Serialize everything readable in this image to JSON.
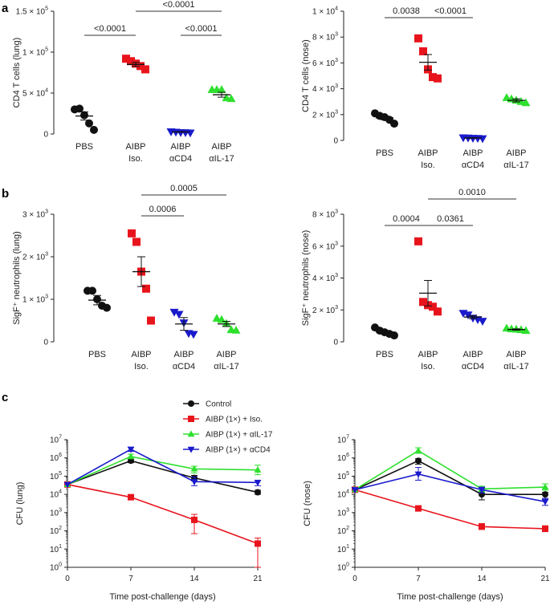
{
  "panel_labels": [
    "a",
    "b",
    "c"
  ],
  "colors": {
    "black": "#111111",
    "red": "#e8141c",
    "blue": "#1a1acc",
    "green": "#2ee02e",
    "grey": "#555555"
  },
  "chart_data": [
    {
      "id": "a_left",
      "type": "scatter",
      "ylabel": "CD4 T cells (lung)",
      "yscale": "linear",
      "ylim": [
        0,
        150000
      ],
      "yticks": [
        {
          "v": 0,
          "m": "0"
        },
        {
          "v": 50000,
          "m": "5 × 10",
          "e": "4"
        },
        {
          "v": 100000,
          "m": "1 × 10",
          "e": "5"
        },
        {
          "v": 150000,
          "m": "1.5 × 10",
          "e": "5"
        }
      ],
      "categories": [
        {
          "l1": "PBS",
          "l2": ""
        },
        {
          "l1": "AIBP",
          "l2": "Iso."
        },
        {
          "l1": "AIBP",
          "l2": "αCD4"
        },
        {
          "l1": "AIBP",
          "l2": "αIL-17"
        }
      ],
      "groups": [
        {
          "color": "black",
          "marker": "circle",
          "points": [
            30000,
            31000,
            23000,
            13000,
            5000
          ],
          "mean": 22000,
          "sem": 5000
        },
        {
          "color": "red",
          "marker": "square",
          "points": [
            92000,
            89000,
            86000,
            83000,
            79000
          ],
          "mean": 85000,
          "sem": 2500
        },
        {
          "color": "blue",
          "marker": "tri_down",
          "points": [
            3000,
            2500,
            2000,
            1800,
            1500
          ],
          "mean": 2500,
          "sem": 300
        },
        {
          "color": "green",
          "marker": "tri_up",
          "points": [
            54000,
            54000,
            54000,
            44000,
            43000
          ],
          "mean": 48000,
          "sem": 3000
        }
      ],
      "brackets": [
        {
          "from": 1,
          "to": 3,
          "text": "<0.0001"
        },
        {
          "from": 0,
          "to": 1,
          "text": "<0.0001"
        },
        {
          "from": 2,
          "to": 3,
          "text": "<0.0001"
        }
      ]
    },
    {
      "id": "a_right",
      "type": "scatter",
      "ylabel": "CD4 T cells (nose)",
      "yscale": "linear",
      "ylim": [
        0,
        10000
      ],
      "yticks": [
        {
          "v": 0,
          "m": "0"
        },
        {
          "v": 2000,
          "m": "2 × 10",
          "e": "3"
        },
        {
          "v": 4000,
          "m": "4 × 10",
          "e": "3"
        },
        {
          "v": 6000,
          "m": "6 × 10",
          "e": "3"
        },
        {
          "v": 8000,
          "m": "8 × 10",
          "e": "3"
        },
        {
          "v": 10000,
          "m": "1 × 10",
          "e": "4"
        }
      ],
      "categories": [
        {
          "l1": "PBS",
          "l2": ""
        },
        {
          "l1": "AIBP",
          "l2": "Iso."
        },
        {
          "l1": "AIBP",
          "l2": "αCD4"
        },
        {
          "l1": "AIBP",
          "l2": "αIL-17"
        }
      ],
      "groups": [
        {
          "color": "black",
          "marker": "circle",
          "points": [
            2100,
            1900,
            1800,
            1600,
            1300
          ],
          "mean": 1750,
          "sem": 150
        },
        {
          "color": "red",
          "marker": "square",
          "points": [
            7900,
            6900,
            5500,
            4900,
            4800
          ],
          "mean": 6050,
          "sem": 600
        },
        {
          "color": "blue",
          "marker": "tri_down",
          "points": [
            220,
            200,
            180,
            170,
            150
          ],
          "mean": 190,
          "sem": 20
        },
        {
          "color": "green",
          "marker": "tri_up",
          "points": [
            3300,
            3200,
            3100,
            3000,
            2900
          ],
          "mean": 3100,
          "sem": 120
        }
      ],
      "brackets": [
        {
          "from": 0,
          "to": 1,
          "text": "0.0038"
        },
        {
          "from": 1,
          "to": 2,
          "text": "<0.0001"
        }
      ]
    },
    {
      "id": "b_left",
      "type": "scatter",
      "ylabel": "SigF⁺ neutrophils (lung)",
      "yscale": "linear",
      "ylim": [
        0,
        3000
      ],
      "yticks": [
        {
          "v": 0,
          "m": "0"
        },
        {
          "v": 1000,
          "m": "1 × 10",
          "e": "3"
        },
        {
          "v": 2000,
          "m": "2 × 10",
          "e": "3"
        },
        {
          "v": 3000,
          "m": "3 × 10",
          "e": "3"
        }
      ],
      "categories": [
        {
          "l1": "PBS",
          "l2": ""
        },
        {
          "l1": "AIBP",
          "l2": "Iso."
        },
        {
          "l1": "AIBP",
          "l2": "αCD4"
        },
        {
          "l1": "AIBP",
          "l2": "αIL-17"
        }
      ],
      "groups": [
        {
          "color": "black",
          "marker": "circle",
          "points": [
            1200,
            1200,
            1000,
            850,
            800
          ],
          "mean": 980,
          "sem": 110
        },
        {
          "color": "red",
          "marker": "square",
          "points": [
            2550,
            2350,
            1650,
            1250,
            500
          ],
          "mean": 1650,
          "sem": 350
        },
        {
          "color": "blue",
          "marker": "tri_down",
          "points": [
            700,
            650,
            450,
            200,
            180
          ],
          "mean": 420,
          "sem": 150
        },
        {
          "color": "green",
          "marker": "tri_up",
          "points": [
            550,
            520,
            430,
            280,
            270
          ],
          "mean": 420,
          "sem": 60
        }
      ],
      "brackets": [
        {
          "from": 1,
          "to": 3,
          "text": "0.0005"
        },
        {
          "from": 1,
          "to": 2,
          "text": "0.0006"
        }
      ]
    },
    {
      "id": "b_right",
      "type": "scatter",
      "ylabel": "SigF⁺ neutrophils (nose)",
      "yscale": "linear",
      "ylim": [
        0,
        8000
      ],
      "yticks": [
        {
          "v": 0,
          "m": "0"
        },
        {
          "v": 2000,
          "m": "2 × 10",
          "e": "3"
        },
        {
          "v": 4000,
          "m": "4 × 10",
          "e": "3"
        },
        {
          "v": 6000,
          "m": "6 × 10",
          "e": "3"
        },
        {
          "v": 8000,
          "m": "8 × 10",
          "e": "3"
        }
      ],
      "categories": [
        {
          "l1": "PBS",
          "l2": ""
        },
        {
          "l1": "AIBP",
          "l2": "Iso."
        },
        {
          "l1": "AIBP",
          "l2": "αCD4"
        },
        {
          "l1": "AIBP",
          "l2": "αIL-17"
        }
      ],
      "groups": [
        {
          "color": "black",
          "marker": "circle",
          "points": [
            900,
            700,
            600,
            500,
            400
          ],
          "mean": 620,
          "sem": 90
        },
        {
          "color": "red",
          "marker": "square",
          "points": [
            6300,
            2500,
            2300,
            2200,
            1900
          ],
          "mean": 3050,
          "sem": 800
        },
        {
          "color": "blue",
          "marker": "tri_down",
          "points": [
            1800,
            1700,
            1500,
            1400,
            1300
          ],
          "mean": 1550,
          "sem": 100
        },
        {
          "color": "green",
          "marker": "tri_up",
          "points": [
            850,
            800,
            780,
            750,
            700
          ],
          "mean": 770,
          "sem": 40
        }
      ],
      "brackets": [
        {
          "from": 1,
          "to": 3,
          "text": "0.0010"
        },
        {
          "from": 0,
          "to": 1,
          "text": "0.0004"
        },
        {
          "from": 1,
          "to": 2,
          "text": "0.0361"
        }
      ]
    },
    {
      "id": "c_left",
      "type": "line",
      "ylabel": "CFU (lung)",
      "xlabel": "Time post-challenge (days)",
      "yscale": "log",
      "ylim": [
        1,
        10000000
      ],
      "xlim": [
        0,
        21
      ],
      "x": [
        0,
        7,
        14,
        21
      ],
      "xticks": [
        "0",
        "7",
        "14",
        "21"
      ],
      "yticks": [
        {
          "v": 1,
          "e": "0"
        },
        {
          "v": 10,
          "e": "1"
        },
        {
          "v": 100,
          "e": "2"
        },
        {
          "v": 1000,
          "e": "3"
        },
        {
          "v": 10000,
          "e": "4"
        },
        {
          "v": 100000,
          "e": "5"
        },
        {
          "v": 1000000,
          "e": "6"
        },
        {
          "v": 10000000,
          "e": "7"
        }
      ],
      "series": [
        {
          "name": "Control",
          "color": "black",
          "marker": "circle",
          "values": [
            35000,
            700000,
            80000,
            13000
          ],
          "err_lo": [
            35000,
            550000,
            55000,
            10000
          ],
          "err_hi": [
            35000,
            850000,
            110000,
            17000
          ]
        },
        {
          "name": "AIBP (1×) + Iso.",
          "color": "red",
          "marker": "square",
          "values": [
            35000,
            7000,
            400,
            20
          ],
          "err_lo": [
            35000,
            6000,
            70,
            1
          ],
          "err_hi": [
            35000,
            8500,
            800,
            40
          ]
        },
        {
          "name": "AIBP (1×) + αIL-17",
          "color": "green",
          "marker": "tri_up",
          "values": [
            35000,
            1200000,
            250000,
            220000
          ],
          "err_lo": [
            35000,
            900000,
            150000,
            120000
          ],
          "err_hi": [
            35000,
            1600000,
            350000,
            400000
          ]
        },
        {
          "name": "AIBP (1×) + αCD4",
          "color": "blue",
          "marker": "tri_down",
          "values": [
            35000,
            3000000,
            50000,
            45000
          ],
          "err_lo": [
            35000,
            2300000,
            30000,
            30000
          ],
          "err_hi": [
            35000,
            3800000,
            90000,
            60000
          ]
        }
      ]
    },
    {
      "id": "c_right",
      "type": "line",
      "ylabel": "CFU (nose)",
      "xlabel": "Time post-challenge (days)",
      "yscale": "log",
      "ylim": [
        1,
        10000000
      ],
      "xlim": [
        0,
        21
      ],
      "x": [
        0,
        7,
        14,
        21
      ],
      "xticks": [
        "0",
        "7",
        "14",
        "21"
      ],
      "yticks": [
        {
          "v": 1,
          "e": "0"
        },
        {
          "v": 10,
          "e": "1"
        },
        {
          "v": 100,
          "e": "2"
        },
        {
          "v": 1000,
          "e": "3"
        },
        {
          "v": 10000,
          "e": "4"
        },
        {
          "v": 100000,
          "e": "5"
        },
        {
          "v": 1000000,
          "e": "6"
        },
        {
          "v": 10000000,
          "e": "7"
        }
      ],
      "series": [
        {
          "name": "Control",
          "color": "black",
          "marker": "circle",
          "values": [
            18000,
            700000,
            10000,
            10000
          ],
          "err_lo": [
            18000,
            450000,
            5000,
            6000
          ],
          "err_hi": [
            18000,
            900000,
            15000,
            13000
          ]
        },
        {
          "name": "AIBP (1×) + Iso.",
          "color": "red",
          "marker": "square",
          "values": [
            18000,
            1700,
            170,
            130
          ],
          "err_lo": [
            18000,
            1400,
            120,
            90
          ],
          "err_hi": [
            18000,
            2100,
            250,
            190
          ]
        },
        {
          "name": "AIBP (1×) + αIL-17",
          "color": "green",
          "marker": "tri_up",
          "values": [
            18000,
            2500000,
            20000,
            25000
          ],
          "err_lo": [
            18000,
            1800000,
            14000,
            17000
          ],
          "err_hi": [
            18000,
            3600000,
            28000,
            38000
          ]
        },
        {
          "name": "AIBP (1×) + αCD4",
          "color": "blue",
          "marker": "tri_down",
          "values": [
            18000,
            130000,
            18000,
            4000
          ],
          "err_lo": [
            18000,
            60000,
            12000,
            2500
          ],
          "err_hi": [
            18000,
            300000,
            25000,
            6000
          ]
        }
      ]
    }
  ],
  "legend": [
    {
      "label": "Control",
      "color": "black",
      "marker": "circle"
    },
    {
      "label": "AIBP (1×) + Iso.",
      "color": "red",
      "marker": "square"
    },
    {
      "label": "AIBP (1×) + αIL-17",
      "color": "green",
      "marker": "tri_up"
    },
    {
      "label": "AIBP (1×) + αCD4",
      "color": "blue",
      "marker": "tri_down"
    }
  ]
}
